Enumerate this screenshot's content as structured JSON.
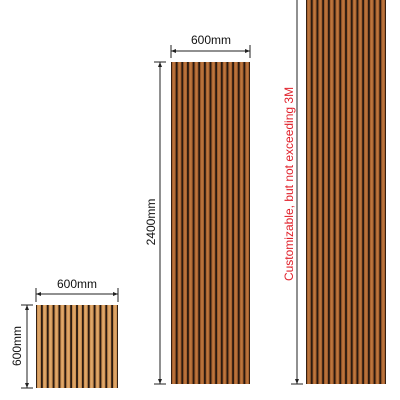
{
  "colors": {
    "slat": "#b56b34",
    "slat_light": "#d8a064",
    "groove": "#2a1a10",
    "dimension_line": "#222222",
    "note": "#e0202a"
  },
  "panels": {
    "square": {
      "width_label": "600mm",
      "height_label": "600mm"
    },
    "standard": {
      "width_label": "600mm",
      "height_label": "2400mm"
    },
    "custom": {
      "note": "Customizable, but not exceeding 3M"
    }
  }
}
